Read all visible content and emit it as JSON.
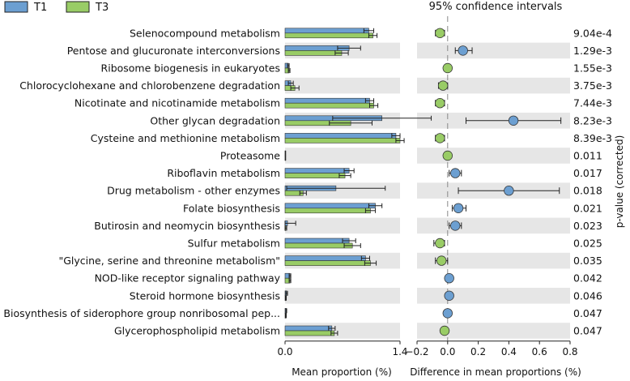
{
  "chart_data": {
    "type": "bar",
    "title": "95% confidence intervals",
    "legend": [
      {
        "name": "T1",
        "color": "#6c9fd1"
      },
      {
        "name": "T3",
        "color": "#99cc66"
      }
    ],
    "legend_placement": "top-left",
    "categories": [
      "Selenocompound metabolism",
      "Pentose and glucuronate interconversions",
      "Ribosome biogenesis in eukaryotes",
      "Chlorocyclohexane and chlorobenzene degradation",
      "Nicotinate and nicotinamide metabolism",
      "Other glycan degradation",
      "Cysteine and methionine metabolism",
      "Proteasome",
      "Riboflavin metabolism",
      "Drug metabolism - other enzymes",
      "Folate biosynthesis",
      "Butirosin and neomycin biosynthesis",
      "Sulfur metabolism",
      "\"Glycine, serine and threonine metabolism\"",
      "NOD-like receptor signaling pathway",
      "Steroid hormone biosynthesis",
      "Biosynthesis of siderophore group nonribosomal pep...",
      "Glycerophospholipid metabolism"
    ],
    "series": [
      {
        "name": "T1",
        "values": [
          1.02,
          0.78,
          0.04,
          0.07,
          1.03,
          1.18,
          1.35,
          0.005,
          0.78,
          0.62,
          1.1,
          0.03,
          0.78,
          0.98,
          0.06,
          0.02,
          0.015,
          0.57
        ],
        "errors": [
          0.06,
          0.14,
          0.01,
          0.03,
          0.05,
          0.6,
          0.05,
          0.002,
          0.06,
          0.6,
          0.08,
          0.1,
          0.08,
          0.05,
          0.01,
          0.01,
          0.005,
          0.04
        ]
      },
      {
        "name": "T3",
        "values": [
          1.07,
          0.69,
          0.05,
          0.12,
          1.08,
          0.8,
          1.4,
          0.005,
          0.73,
          0.22,
          1.04,
          0.01,
          0.82,
          1.04,
          0.06,
          0.01,
          0.01,
          0.6
        ],
        "errors": [
          0.05,
          0.08,
          0.01,
          0.05,
          0.05,
          0.26,
          0.05,
          0.002,
          0.07,
          0.04,
          0.06,
          0.01,
          0.1,
          0.07,
          0.01,
          0.005,
          0.005,
          0.04
        ]
      }
    ],
    "xlabel": "Mean proportion (%)",
    "xlim": [
      0,
      1.4
    ],
    "xticks": [
      "0.0",
      "1.4"
    ],
    "diff": {
      "xlabel": "Difference in mean proportions (%)",
      "xlim": [
        -0.2,
        0.8
      ],
      "xticks": [
        "−0.2",
        "0.0",
        "0.2",
        "0.4",
        "0.6",
        "0.8"
      ],
      "values": [
        -0.05,
        0.1,
        0.0,
        -0.03,
        -0.05,
        0.43,
        -0.05,
        0.0,
        0.05,
        0.4,
        0.07,
        0.05,
        -0.05,
        -0.04,
        0.01,
        0.01,
        0.0,
        -0.02
      ],
      "ci_low": [
        -0.08,
        0.05,
        -0.01,
        -0.06,
        -0.08,
        0.12,
        -0.08,
        -0.01,
        0.01,
        0.07,
        0.03,
        0.01,
        -0.09,
        -0.08,
        0.0,
        0.0,
        -0.01,
        -0.04
      ],
      "ci_high": [
        -0.02,
        0.16,
        0.01,
        0.0,
        -0.02,
        0.74,
        -0.02,
        0.01,
        0.09,
        0.73,
        0.12,
        0.09,
        -0.02,
        0.0,
        0.02,
        0.02,
        0.01,
        0.0
      ],
      "favors": [
        "T3",
        "T1",
        "T3",
        "T3",
        "T3",
        "T1",
        "T3",
        "T3",
        "T1",
        "T1",
        "T1",
        "T1",
        "T3",
        "T3",
        "T1",
        "T1",
        "T1",
        "T3"
      ]
    },
    "pvalues": [
      "9.04e-4",
      "1.29e-3",
      "1.55e-3",
      "3.75e-3",
      "7.44e-3",
      "8.23e-3",
      "8.39e-3",
      "0.011",
      "0.017",
      "0.018",
      "0.021",
      "0.023",
      "0.025",
      "0.035",
      "0.042",
      "0.046",
      "0.047",
      "0.047"
    ],
    "pvalue_label": "p-value (corrected)"
  }
}
